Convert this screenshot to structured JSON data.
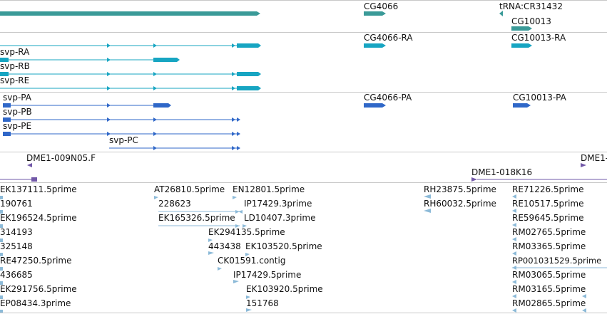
{
  "colors": {
    "gene": "#3a9a98",
    "transcript": "#17a5c2",
    "protein": "#2f67c8",
    "clone": "#7258a8",
    "est": "#8cbad8",
    "separator": "#c8c8c8"
  },
  "genes_track": {
    "labels": {
      "cg4066": "CG4066",
      "trna": "tRNA:CR31432",
      "cg10013": "CG10013"
    }
  },
  "transcripts_track": {
    "labels": {
      "svp_ra": "svp-RA",
      "svp_rb": "svp-RB",
      "svp_re": "svp-RE",
      "cg4066_ra": "CG4066-RA",
      "cg10013_ra": "CG10013-RA"
    }
  },
  "proteins_track": {
    "labels": {
      "svp_pa": "svp-PA",
      "svp_pb": "svp-PB",
      "svp_pe": "svp-PE",
      "svp_pc": "svp-PC",
      "cg4066_pa": "CG4066-PA",
      "cg10013_pa": "CG10013-PA"
    }
  },
  "clones_track": {
    "labels": {
      "dme1_009n05": "DME1-009N05.F",
      "dme1_018k16": "DME1-018K16",
      "dme1_edge": "DME1-"
    }
  },
  "est_track": {
    "col1": [
      "EK137111.5prime",
      "190761",
      "EK196524.5prime",
      "314193",
      "325148",
      "RE47250.5prime",
      "436685",
      "EK291756.5prime",
      "EP08434.3prime"
    ],
    "col2": {
      "at26810": "AT26810.5prime",
      "n228623": "228623",
      "ek165326": "EK165326.5prime",
      "en12801": "EN12801.5prime",
      "ip17429_3": "IP17429.3prime",
      "ld10407": "LD10407.3prime",
      "ek294135": "EK294135.5prime",
      "n443438": "443438",
      "ek103520": "EK103520.5prime",
      "ck01591": "CK01591.contig",
      "ip17429_5": "IP17429.5prime",
      "ek103920": "EK103920.5prime",
      "n151768": "151768"
    },
    "col3": {
      "rh23875": "RH23875.5prime",
      "rh60032": "RH60032.5prime"
    },
    "col4": [
      "RE71226.5prime",
      "RE10517.5prime",
      "RE59645.5prime",
      "RM02765.5prime",
      "RM03365.5prime",
      "RP001031529.5prime",
      "RM03065.5prime",
      "RM03165.5prime",
      "RM02865.5prime"
    ]
  }
}
